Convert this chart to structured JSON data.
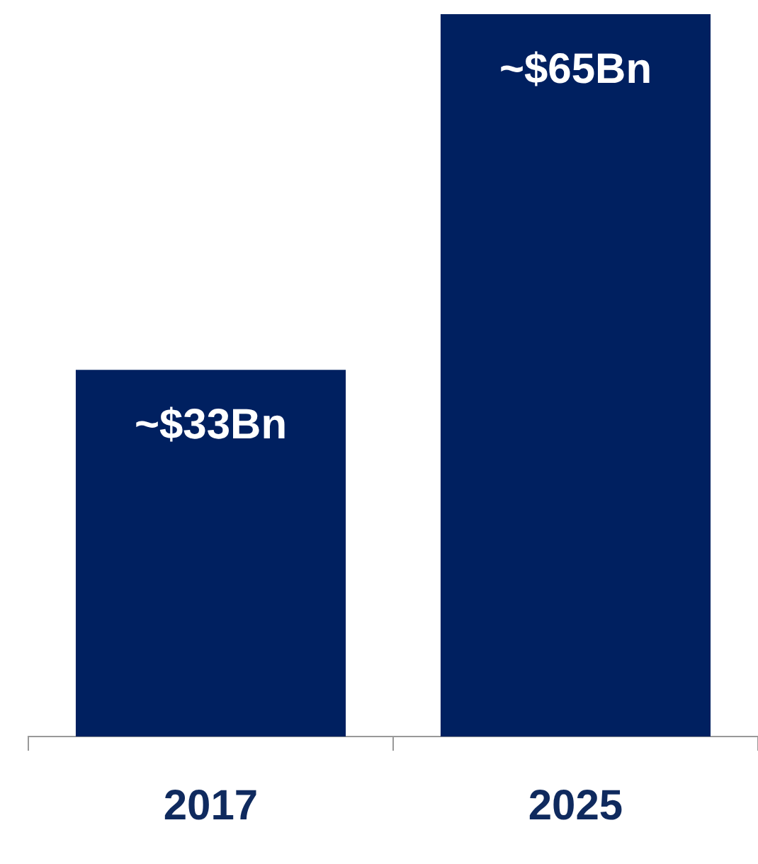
{
  "chart_data": {
    "type": "bar",
    "categories": [
      "2017",
      "2025"
    ],
    "values": [
      33,
      65
    ],
    "value_labels": [
      "~$33Bn",
      "~$65Bn"
    ],
    "color": "#002060",
    "ylim": [
      0,
      65
    ],
    "legend": false,
    "grid": false
  }
}
